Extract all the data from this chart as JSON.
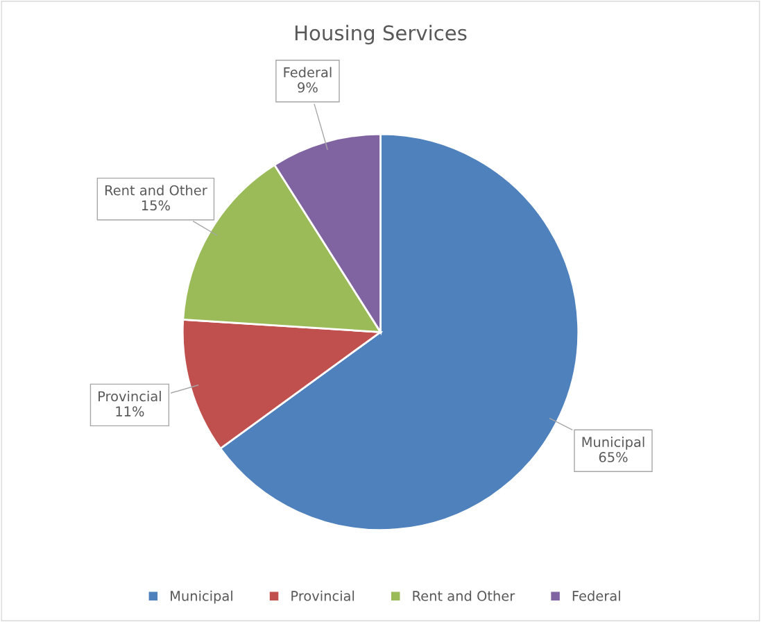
{
  "chart_data": {
    "type": "pie",
    "title": "Housing Services",
    "categories": [
      "Municipal",
      "Provincial",
      "Rent and Other",
      "Federal"
    ],
    "values": [
      65,
      11,
      15,
      9
    ],
    "colors": [
      "#4f81bd",
      "#c0504d",
      "#9bbb59",
      "#8064a2"
    ],
    "value_labels": [
      "65%",
      "11%",
      "15%",
      "9%"
    ],
    "legend": "bottom"
  }
}
